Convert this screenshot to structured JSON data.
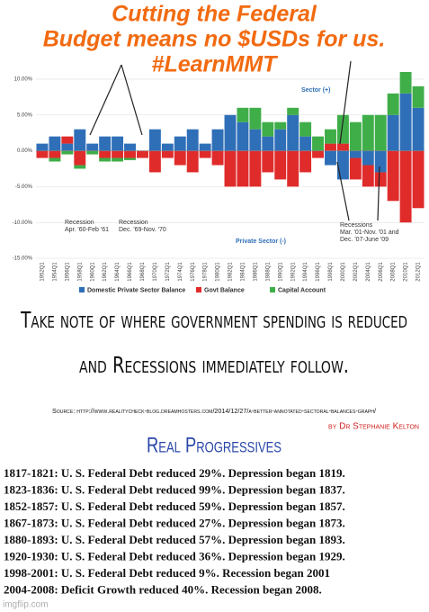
{
  "header": {
    "lines": [
      "Cutting the Federal",
      "Budget means no $USDs for us.",
      "#LearnMMT"
    ]
  },
  "chart_data": {
    "type": "bar",
    "categories": [
      "1952Q1",
      "1954Q1",
      "1956Q1",
      "1958Q1",
      "1960Q1",
      "1962Q1",
      "1964Q1",
      "1966Q1",
      "1968Q1",
      "1970Q1",
      "1972Q1",
      "1974Q1",
      "1976Q1",
      "1978Q1",
      "1980Q1",
      "1982Q1",
      "1984Q1",
      "1986Q1",
      "1988Q1",
      "1990Q1",
      "1992Q1",
      "1994Q1",
      "1996Q1",
      "1998Q1",
      "2000Q1",
      "2002Q1",
      "2004Q1",
      "2006Q1",
      "2008Q1",
      "2010Q1",
      "2012Q1"
    ],
    "series": [
      {
        "name": "Domestic Private Sector Balance",
        "color": "#2f6fb8",
        "values": [
          1,
          2,
          1,
          3,
          1,
          2,
          2,
          1,
          0,
          3,
          1,
          2,
          3,
          1,
          3,
          5,
          4,
          3,
          2,
          3,
          5,
          2,
          0,
          -2,
          -4,
          -1,
          -2,
          -3,
          5,
          8,
          6
        ]
      },
      {
        "name": "Govt Balance",
        "color": "#e02b2b",
        "values": [
          -1,
          -1,
          1,
          -2,
          0,
          -1,
          -1,
          -1,
          -1,
          -3,
          -1,
          -2,
          -3,
          -1,
          -2,
          -5,
          -5,
          -5,
          -3,
          -4,
          -5,
          -3,
          -1,
          1,
          1,
          -3,
          -3,
          -2,
          -7,
          -10,
          -8
        ]
      },
      {
        "name": "Capital Account",
        "color": "#3fae49",
        "values": [
          0,
          -0.5,
          -0.5,
          -0.5,
          -0.5,
          -0.5,
          -0.5,
          -0.3,
          0,
          0,
          0,
          0,
          0,
          0,
          0,
          0,
          2,
          3,
          2,
          1,
          1,
          2,
          2,
          2,
          4,
          4,
          5,
          5,
          3,
          3,
          3
        ]
      }
    ],
    "ylim": [
      -15,
      12
    ],
    "yticks": [
      {
        "value": -15,
        "label": "-15.00%"
      },
      {
        "value": -10,
        "label": "-10.00%"
      },
      {
        "value": -5,
        "label": "-5.00%"
      },
      {
        "value": 0,
        "label": "0.00%"
      },
      {
        "value": 5,
        "label": "5.00%"
      },
      {
        "value": 10,
        "label": "10.00%"
      }
    ],
    "stacked": true,
    "annotations": [
      {
        "lines": [
          "Recession",
          "Apr. '60-Feb '61"
        ],
        "color": "#333333"
      },
      {
        "lines": [
          "Recession",
          "Dec. '69-Nov. '70"
        ],
        "color": "#333333"
      },
      {
        "lines": [
          "Private Sector (-)"
        ],
        "color": "#2f6fb8"
      },
      {
        "lines": [
          "Sector (+)"
        ],
        "color": "#2f6fb8"
      },
      {
        "lines": [
          "Recessions",
          "Mar. '01-Nov. '01 and",
          "Dec. '07-June '09"
        ],
        "color": "#333333"
      }
    ]
  },
  "text": {
    "note": [
      "Take note of where government spending is reduced",
      "and Recessions immediately follow."
    ],
    "source": "Source: http://www.realitycheck-blog.dreamhosters.com/2014/12/27/a-better-annotated-sectoral-balances-graph/",
    "author": "by Dr Stephanie Kelton",
    "org": "Real Progressives",
    "list": [
      "1817-1821: U. S. Federal Debt reduced 29%. Depression began 1819.",
      "1823-1836: U. S. Federal Debt reduced 99%. Depression began 1837.",
      "1852-1857: U. S. Federal Debt reduced 59%. Depression began 1857.",
      "1867-1873: U. S. Federal Debt reduced 27%. Depression began 1873.",
      "1880-1893: U. S. Federal Debt reduced 57%. Depression began 1893.",
      "1920-1930: U. S. Federal Debt reduced 36%. Depression began 1929.",
      "1998-2001: U. S. Federal Debt reduced 9%. Recession began 2001",
      "2004-2008: Deficit Growth reduced 40%. Recession began 2008."
    ],
    "watermark": "imgflip.com"
  }
}
